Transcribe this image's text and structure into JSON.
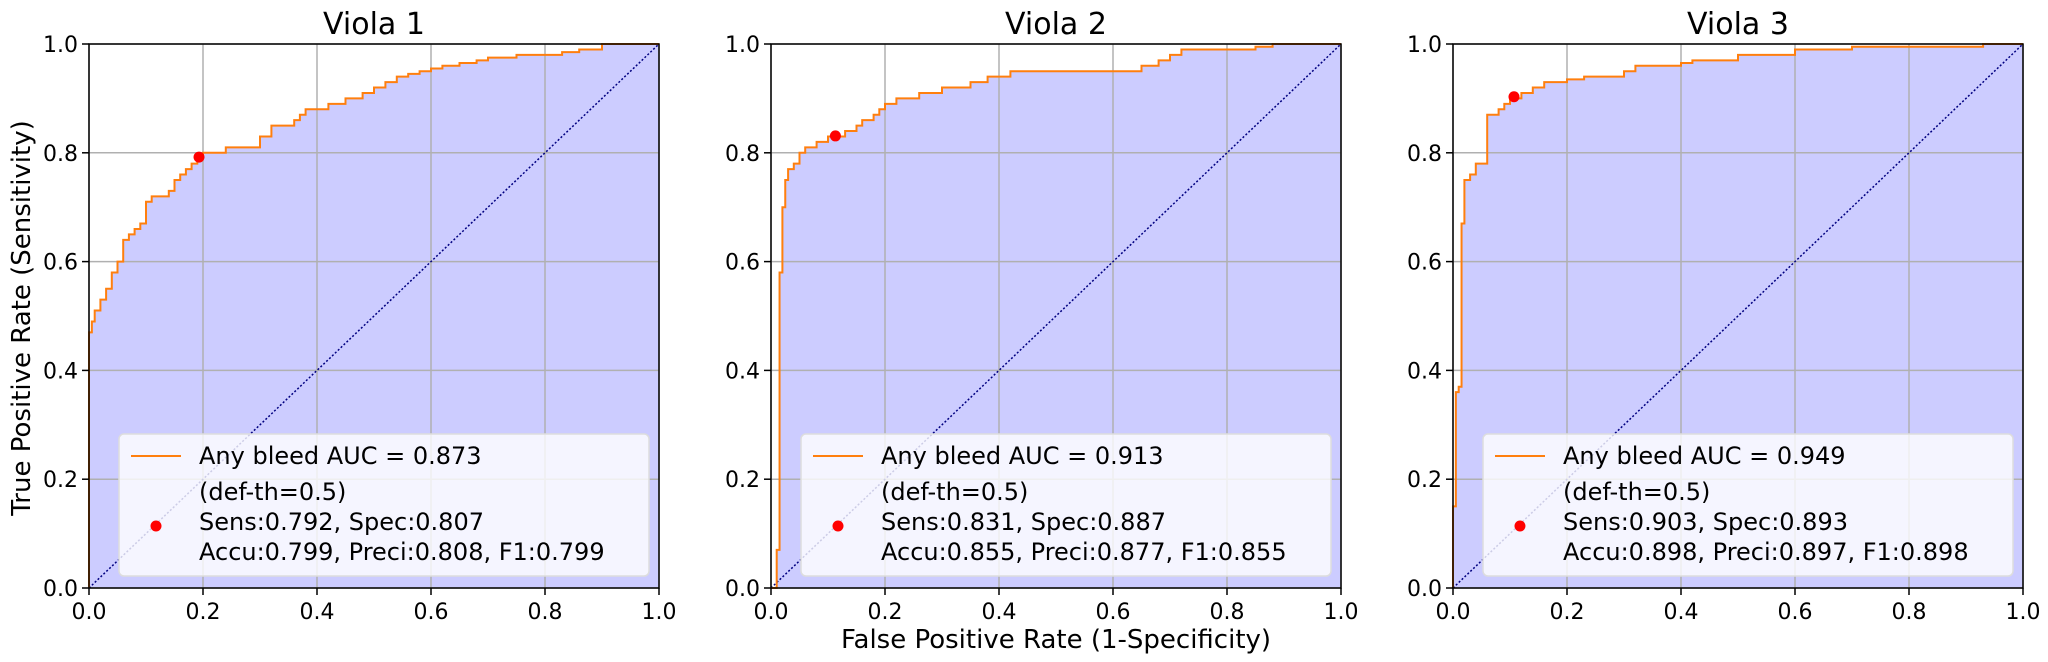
{
  "figure": {
    "ylabel": "True Positive Rate (Sensitivity)",
    "xlabel": "False Positive Rate (1-Specificity)"
  },
  "colors": {
    "fill": "#ccccff",
    "roc_line": "#ff7f0e",
    "marker": "#ff0000",
    "grid": "#b0b0b0",
    "diagonal": "#000080"
  },
  "chart_data": [
    {
      "type": "line",
      "title": "Viola 1",
      "xlim": [
        0,
        1
      ],
      "ylim": [
        0,
        1
      ],
      "xticks": [
        "0.0",
        "0.2",
        "0.4",
        "0.6",
        "0.8",
        "1.0"
      ],
      "yticks": [
        "0.0",
        "0.2",
        "0.4",
        "0.6",
        "0.8",
        "1.0"
      ],
      "grid": true,
      "legend_position": "lower right",
      "roc": {
        "x": [
          0.0,
          0.0,
          0.005,
          0.005,
          0.01,
          0.01,
          0.02,
          0.02,
          0.03,
          0.03,
          0.04,
          0.04,
          0.05,
          0.05,
          0.06,
          0.06,
          0.07,
          0.07,
          0.08,
          0.08,
          0.09,
          0.09,
          0.1,
          0.1,
          0.11,
          0.11,
          0.14,
          0.14,
          0.15,
          0.15,
          0.16,
          0.16,
          0.17,
          0.17,
          0.18,
          0.18,
          0.19,
          0.19,
          0.2,
          0.2,
          0.22,
          0.22,
          0.24,
          0.24,
          0.3,
          0.3,
          0.32,
          0.32,
          0.36,
          0.36,
          0.37,
          0.37,
          0.38,
          0.38,
          0.42,
          0.42,
          0.45,
          0.45,
          0.48,
          0.48,
          0.5,
          0.5,
          0.52,
          0.52,
          0.54,
          0.54,
          0.56,
          0.56,
          0.58,
          0.58,
          0.6,
          0.6,
          0.62,
          0.62,
          0.65,
          0.65,
          0.68,
          0.68,
          0.7,
          0.7,
          0.75,
          0.75,
          0.83,
          0.83,
          0.86,
          0.86,
          0.9,
          0.9,
          1.0
        ],
        "y": [
          0.0,
          0.47,
          0.47,
          0.49,
          0.49,
          0.51,
          0.51,
          0.53,
          0.53,
          0.55,
          0.55,
          0.58,
          0.58,
          0.6,
          0.6,
          0.64,
          0.64,
          0.65,
          0.65,
          0.66,
          0.66,
          0.67,
          0.67,
          0.71,
          0.71,
          0.72,
          0.72,
          0.73,
          0.73,
          0.75,
          0.75,
          0.76,
          0.76,
          0.77,
          0.77,
          0.78,
          0.78,
          0.79,
          0.79,
          0.8,
          0.8,
          0.8,
          0.8,
          0.81,
          0.81,
          0.83,
          0.83,
          0.85,
          0.85,
          0.86,
          0.86,
          0.87,
          0.87,
          0.88,
          0.88,
          0.89,
          0.89,
          0.9,
          0.9,
          0.91,
          0.91,
          0.92,
          0.92,
          0.93,
          0.93,
          0.94,
          0.94,
          0.945,
          0.945,
          0.95,
          0.95,
          0.955,
          0.955,
          0.96,
          0.96,
          0.965,
          0.965,
          0.97,
          0.97,
          0.975,
          0.975,
          0.98,
          0.98,
          0.985,
          0.985,
          0.99,
          0.99,
          1.0,
          1.0
        ]
      },
      "operating_point": {
        "x": 0.193,
        "y": 0.792
      },
      "legend": {
        "line_label": "Any bleed AUC = 0.873",
        "point_lines": [
          "(def-th=0.5)",
          "Sens:0.792, Spec:0.807",
          "Accu:0.799, Preci:0.808, F1:0.799"
        ]
      }
    },
    {
      "type": "line",
      "title": "Viola 2",
      "xlim": [
        0,
        1
      ],
      "ylim": [
        0,
        1
      ],
      "xticks": [
        "0.0",
        "0.2",
        "0.4",
        "0.6",
        "0.8",
        "1.0"
      ],
      "yticks": [
        "0.0",
        "0.2",
        "0.4",
        "0.6",
        "0.8",
        "1.0"
      ],
      "grid": true,
      "legend_position": "lower right",
      "roc": {
        "x": [
          0.0,
          0.01,
          0.01,
          0.015,
          0.015,
          0.02,
          0.02,
          0.025,
          0.025,
          0.03,
          0.03,
          0.04,
          0.04,
          0.05,
          0.05,
          0.06,
          0.06,
          0.08,
          0.08,
          0.1,
          0.1,
          0.13,
          0.13,
          0.15,
          0.15,
          0.16,
          0.16,
          0.18,
          0.18,
          0.19,
          0.19,
          0.2,
          0.2,
          0.22,
          0.22,
          0.26,
          0.26,
          0.3,
          0.3,
          0.35,
          0.35,
          0.38,
          0.38,
          0.42,
          0.42,
          0.65,
          0.65,
          0.68,
          0.68,
          0.7,
          0.7,
          0.72,
          0.72,
          0.85,
          0.85,
          0.88,
          0.88,
          1.0
        ],
        "y": [
          0.0,
          0.0,
          0.07,
          0.07,
          0.58,
          0.58,
          0.7,
          0.7,
          0.75,
          0.75,
          0.77,
          0.77,
          0.78,
          0.78,
          0.8,
          0.8,
          0.81,
          0.81,
          0.82,
          0.82,
          0.83,
          0.83,
          0.84,
          0.84,
          0.85,
          0.85,
          0.86,
          0.86,
          0.87,
          0.87,
          0.88,
          0.88,
          0.89,
          0.89,
          0.9,
          0.9,
          0.91,
          0.91,
          0.92,
          0.92,
          0.93,
          0.93,
          0.94,
          0.94,
          0.95,
          0.95,
          0.96,
          0.96,
          0.97,
          0.97,
          0.98,
          0.98,
          0.99,
          0.99,
          0.995,
          0.995,
          1.0,
          1.0
        ]
      },
      "operating_point": {
        "x": 0.113,
        "y": 0.831
      },
      "legend": {
        "line_label": "Any bleed AUC = 0.913",
        "point_lines": [
          "(def-th=0.5)",
          "Sens:0.831, Spec:0.887",
          "Accu:0.855, Preci:0.877, F1:0.855"
        ]
      }
    },
    {
      "type": "line",
      "title": "Viola 3",
      "xlim": [
        0,
        1
      ],
      "ylim": [
        0,
        1
      ],
      "xticks": [
        "0.0",
        "0.2",
        "0.4",
        "0.6",
        "0.8",
        "1.0"
      ],
      "yticks": [
        "0.0",
        "0.2",
        "0.4",
        "0.6",
        "0.8",
        "1.0"
      ],
      "grid": true,
      "legend_position": "lower right",
      "roc": {
        "x": [
          0.0,
          0.0,
          0.005,
          0.005,
          0.01,
          0.01,
          0.015,
          0.015,
          0.02,
          0.02,
          0.03,
          0.03,
          0.04,
          0.04,
          0.06,
          0.06,
          0.08,
          0.08,
          0.09,
          0.09,
          0.1,
          0.1,
          0.12,
          0.12,
          0.14,
          0.14,
          0.16,
          0.16,
          0.2,
          0.2,
          0.23,
          0.23,
          0.3,
          0.3,
          0.32,
          0.32,
          0.4,
          0.4,
          0.42,
          0.42,
          0.5,
          0.5,
          0.6,
          0.6,
          0.7,
          0.7,
          0.93,
          0.93,
          1.0
        ],
        "y": [
          0.0,
          0.15,
          0.15,
          0.36,
          0.36,
          0.37,
          0.37,
          0.67,
          0.67,
          0.75,
          0.75,
          0.76,
          0.76,
          0.78,
          0.78,
          0.87,
          0.87,
          0.88,
          0.88,
          0.89,
          0.89,
          0.9,
          0.9,
          0.91,
          0.91,
          0.92,
          0.92,
          0.93,
          0.93,
          0.935,
          0.935,
          0.94,
          0.94,
          0.95,
          0.95,
          0.96,
          0.96,
          0.965,
          0.965,
          0.97,
          0.97,
          0.98,
          0.98,
          0.99,
          0.99,
          0.995,
          0.995,
          1.0,
          1.0
        ]
      },
      "operating_point": {
        "x": 0.107,
        "y": 0.903
      },
      "legend": {
        "line_label": "Any bleed AUC = 0.949",
        "point_lines": [
          "(def-th=0.5)",
          "Sens:0.903, Spec:0.893",
          "Accu:0.898, Preci:0.897, F1:0.898"
        ]
      }
    }
  ]
}
